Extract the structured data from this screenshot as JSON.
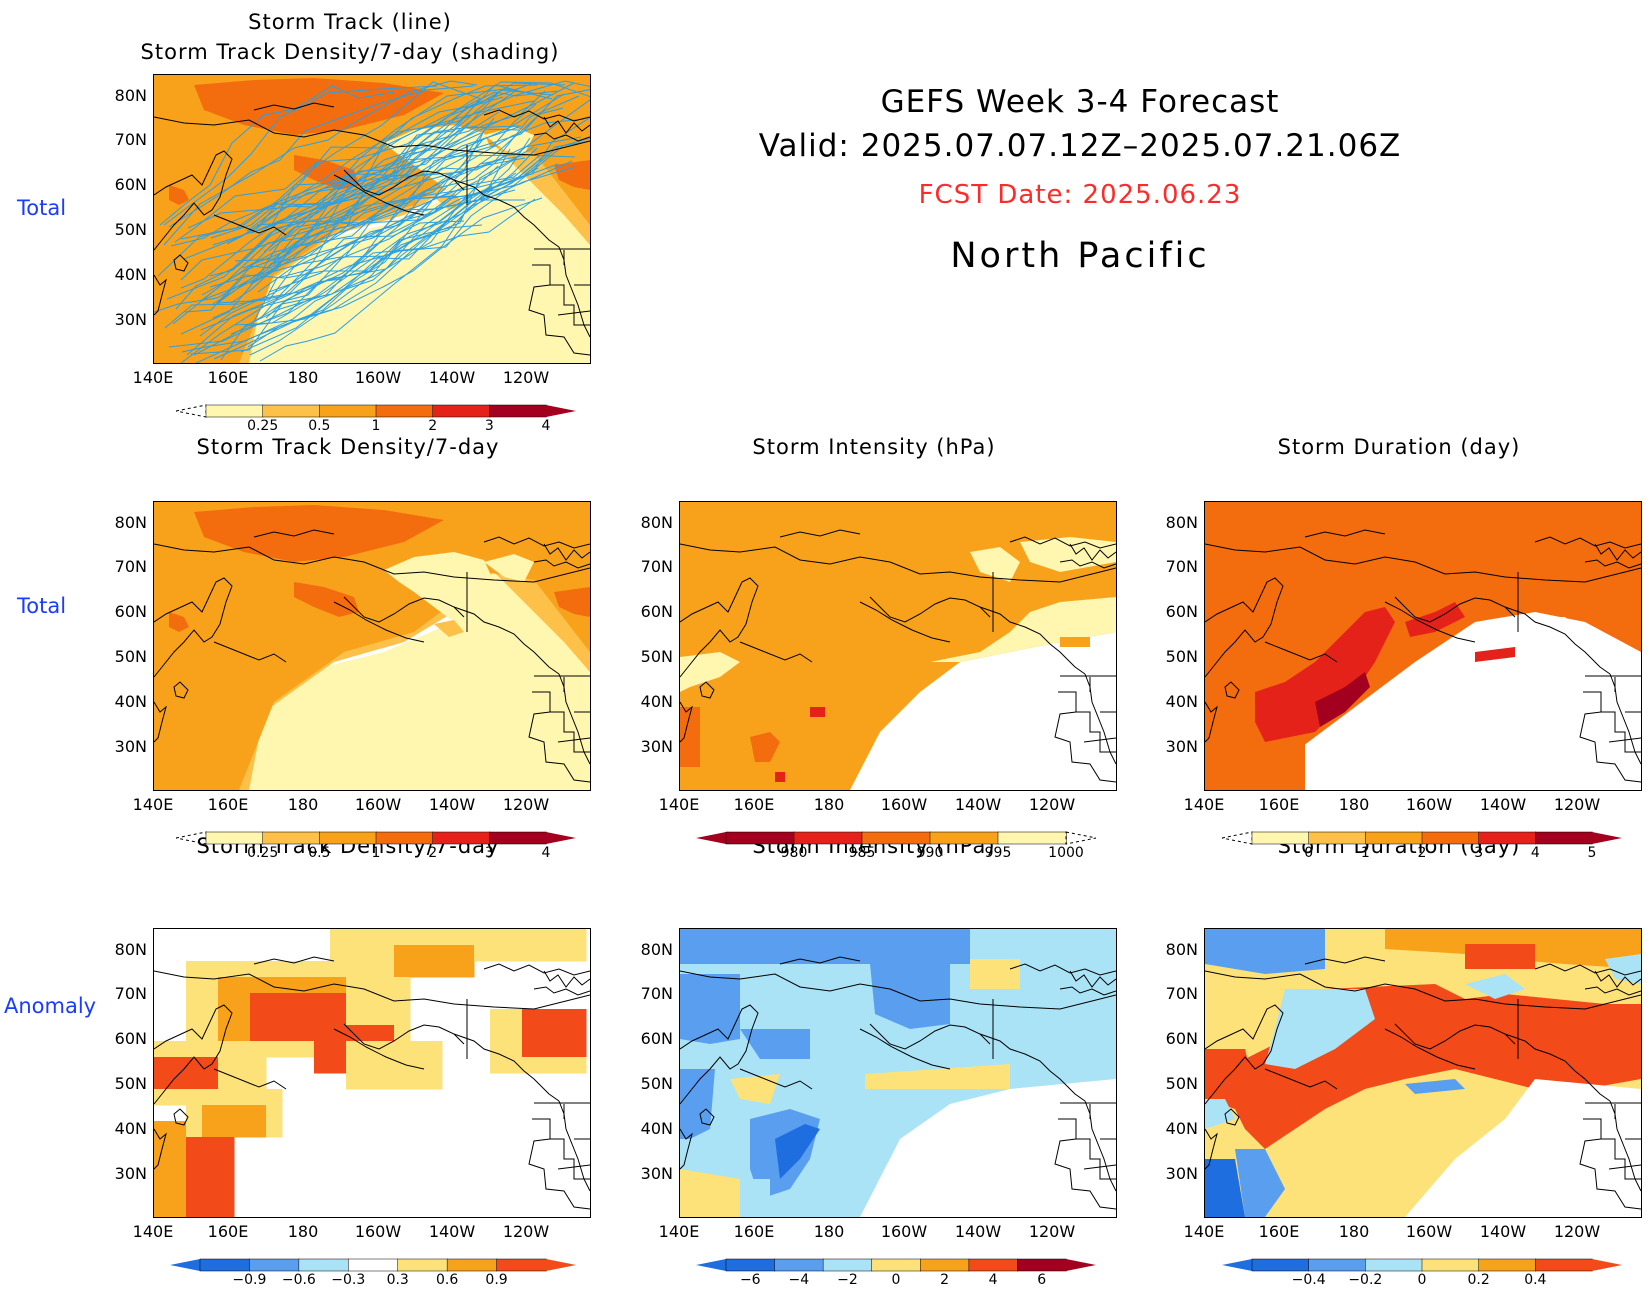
{
  "header": {
    "title": "GEFS Week 3-4 Forecast",
    "valid": "Valid: 2025.07.07.12Z–2025.07.21.06Z",
    "fcst_date": "FCST Date: 2025.06.23",
    "region": "North Pacific"
  },
  "row_labels": {
    "row0": "Total",
    "row1": "Total",
    "row2": "Anomaly"
  },
  "top_panel": {
    "title_line1": "Storm Track (line)",
    "title_line2": "Storm Track Density/7-day (shading)"
  },
  "panels": {
    "r1c1": {
      "title": "Storm Track Density/7-day"
    },
    "r1c2": {
      "title": "Storm Intensity (hPa)"
    },
    "r1c3": {
      "title": "Storm Duration (day)"
    },
    "r2c1": {
      "title": "Storm Track Density/7-day"
    },
    "r2c2": {
      "title": "Storm Intensity (hPa)"
    },
    "r2c3": {
      "title": "Storm Duration (day)"
    }
  },
  "axes": {
    "lat": [
      "80N",
      "70N",
      "60N",
      "50N",
      "40N",
      "30N"
    ],
    "lon": [
      "140E",
      "160E",
      "180",
      "160W",
      "140W",
      "120W"
    ]
  },
  "colorbars": {
    "density_total": {
      "labels": [
        "0.25",
        "0.5",
        "1",
        "2",
        "3",
        "4"
      ],
      "colors": [
        "#fff6b0",
        "#fdc048",
        "#f8a21b",
        "#f36d0f",
        "#e5221a",
        "#a3001f"
      ]
    },
    "intensity_total": {
      "labels": [
        "980",
        "985",
        "990",
        "995",
        "1000"
      ],
      "colors": [
        "#a3001f",
        "#e5221a",
        "#f36d0f",
        "#f8a21b",
        "#fff6b0"
      ]
    },
    "duration_total": {
      "labels": [
        "0",
        "1",
        "2",
        "3",
        "4",
        "5"
      ],
      "colors": [
        "#fff6b0",
        "#fdc048",
        "#f8a21b",
        "#f36d0f",
        "#e5221a",
        "#a3001f"
      ]
    },
    "density_anom": {
      "labels": [
        "−0.9",
        "−0.6",
        "−0.3",
        "0.3",
        "0.6",
        "0.9"
      ],
      "colors": [
        "#1e6ee0",
        "#5a9ef0",
        "#a9e3f5",
        "#fff",
        "#fde27a",
        "#f8a21b",
        "#f24a18"
      ]
    },
    "intensity_anom": {
      "labels": [
        "−6",
        "−4",
        "−2",
        "0",
        "2",
        "4",
        "6"
      ],
      "colors": [
        "#1e6ee0",
        "#5a9ef0",
        "#a9e3f5",
        "#fde27a",
        "#f8a21b",
        "#f24a18",
        "#a3001f"
      ]
    },
    "duration_anom": {
      "labels": [
        "−0.4",
        "−0.2",
        "0",
        "0.2",
        "0.4"
      ],
      "colors": [
        "#1e6ee0",
        "#5a9ef0",
        "#a9e3f5",
        "#fde27a",
        "#f8a21b",
        "#f24a18"
      ]
    }
  }
}
